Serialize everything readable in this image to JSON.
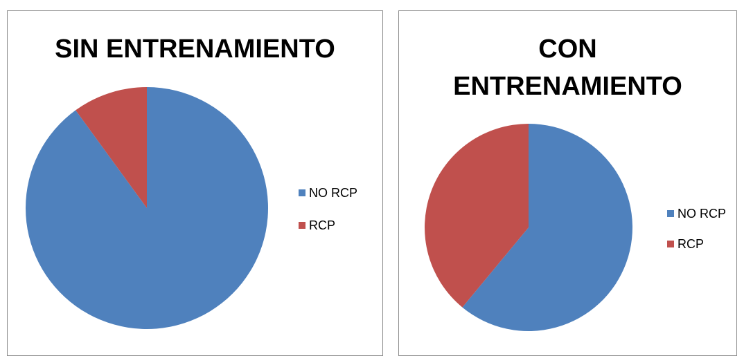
{
  "chart_data": [
    {
      "type": "pie",
      "title": "SIN ENTRENAMIENTO",
      "categories": [
        "NO RCP",
        "RCP"
      ],
      "values": [
        90,
        10
      ],
      "colors": [
        "#4f81bd",
        "#c0504d"
      ],
      "legend": "right"
    },
    {
      "type": "pie",
      "title": "CON ENTRENAMIENTO",
      "categories": [
        "NO RCP",
        "RCP"
      ],
      "values": [
        61,
        39
      ],
      "colors": [
        "#4f81bd",
        "#c0504d"
      ],
      "legend": "right"
    }
  ]
}
